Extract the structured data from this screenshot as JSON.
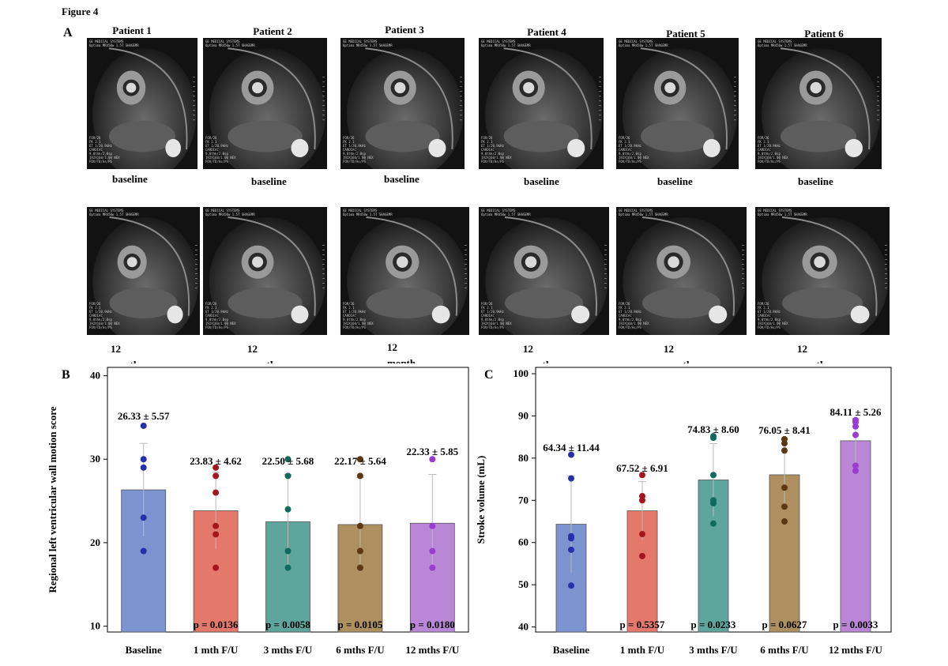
{
  "figure_title": "Figure 4",
  "panels": {
    "a": "A",
    "b": "B",
    "c": "C"
  },
  "patients": [
    "Patient 1",
    "Patient 2",
    "Patient 3",
    "Patient 4",
    "Patient 5",
    "Patient 6"
  ],
  "baseline_label": "baseline",
  "followup_label_lines": [
    "12",
    "month"
  ],
  "mri_overlay": {
    "header_lines": [
      "GE MEDICAL SYSTEMS",
      "Optima MR450w 1.5T SHAGEMR"
    ],
    "bottom_lines": [
      "FOR/26",
      "FK 2.1",
      "ET 1/20.9kHz",
      "CARDIAC",
      "9.0thk/2.0sp",
      "192X160/1.00 NEX",
      "FOV/TD/As/PS"
    ]
  },
  "chart_data": [
    {
      "type": "bar",
      "panel": "B",
      "categories": [
        "Baseline",
        "1 mth F/U",
        "3 mths F/U",
        "6 mths F/U",
        "12 mths F/U"
      ],
      "values": [
        26.33,
        23.83,
        22.5,
        22.17,
        22.33
      ],
      "sd": [
        5.57,
        4.62,
        5.68,
        5.64,
        5.85
      ],
      "value_labels": [
        "26.33 ± 5.57",
        "23.83 ± 4.62",
        "22.50 ± 5.68",
        "22.17 ± 5.64",
        "22.33 ± 5.85"
      ],
      "p_values": [
        "",
        "p = 0.0136",
        "p = 0.0058",
        "p = 0.0105",
        "p = 0.0180"
      ],
      "points": [
        [
          34,
          30,
          29,
          23,
          19
        ],
        [
          29,
          28,
          26,
          22,
          21,
          17
        ],
        [
          30,
          28,
          24,
          19,
          17
        ],
        [
          30,
          28,
          22,
          19,
          17
        ],
        [
          30,
          22,
          19,
          17
        ]
      ],
      "ylabel": "Regional left ventricular wall motion score",
      "xlabel": "",
      "ylim": [
        9.3,
        41
      ],
      "yticks": [
        10,
        20,
        30,
        40
      ],
      "colors": {
        "bars": [
          "#7b93cf",
          "#e4786b",
          "#5ea59d",
          "#ad8f60",
          "#b987d5"
        ],
        "points": [
          "#2531a8",
          "#a5151d",
          "#116a5e",
          "#5c3812",
          "#9a3ccf"
        ]
      }
    },
    {
      "type": "bar",
      "panel": "C",
      "categories": [
        "Baseline",
        "1 mth F/U",
        "3 mths F/U",
        "6 mths F/U",
        "12 mths F/U"
      ],
      "values": [
        64.34,
        67.52,
        74.83,
        76.05,
        84.11
      ],
      "sd": [
        11.44,
        6.91,
        8.6,
        8.41,
        5.26
      ],
      "value_labels": [
        "64.34 ± 11.44",
        "67.52 ± 6.91",
        "74.83 ± 8.60",
        "76.05 ± 8.41",
        "84.11 ± 5.26"
      ],
      "p_values": [
        "",
        "p = 0.5357",
        "p = 0.0233",
        "p = 0.0627",
        "p = 0.0033"
      ],
      "points": [
        [
          80.8,
          75.2,
          61.5,
          61,
          58.3,
          49.8
        ],
        [
          76,
          71,
          70,
          62,
          56.8
        ],
        [
          85.2,
          84.8,
          76,
          70,
          69.3,
          64.5
        ],
        [
          84.5,
          83.5,
          81.8,
          73,
          68.5,
          65
        ],
        [
          89,
          88.5,
          87.5,
          85.5,
          78.2,
          77
        ]
      ],
      "ylabel": "Stroke volume (mL)",
      "xlabel": "",
      "ylim": [
        38.8,
        101.5
      ],
      "yticks": [
        40,
        50,
        60,
        70,
        80,
        90,
        100
      ],
      "colors": {
        "bars": [
          "#7b93cf",
          "#e4786b",
          "#5ea59d",
          "#ad8f60",
          "#b987d5"
        ],
        "points": [
          "#2531a8",
          "#a5151d",
          "#116a5e",
          "#5c3812",
          "#9a3ccf"
        ]
      }
    }
  ]
}
